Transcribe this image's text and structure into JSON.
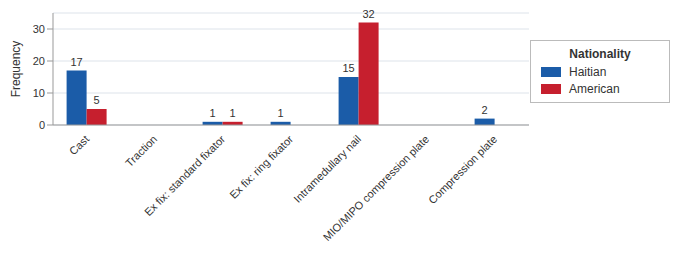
{
  "chart_data": {
    "type": "bar",
    "y_label": "Frequency",
    "categories": [
      "Cast",
      "Traction",
      "Ex fix: standard fixator",
      "Ex fix: ring fixator",
      "Intramedullary nail",
      "MIO/MIPO compression plate",
      "Compression plate"
    ],
    "series": [
      {
        "name": "Haitian",
        "color": "#1b5ca8",
        "values": [
          17,
          null,
          1,
          1,
          15,
          null,
          2
        ]
      },
      {
        "name": "American",
        "color": "#c61f2e",
        "values": [
          5,
          null,
          1,
          null,
          32,
          null,
          null
        ]
      }
    ],
    "ylim": [
      0,
      35
    ],
    "yticks": [
      0,
      10,
      20,
      30
    ],
    "grid": true,
    "data_labels": true,
    "legend": "right",
    "legend_title": "Nationality"
  }
}
